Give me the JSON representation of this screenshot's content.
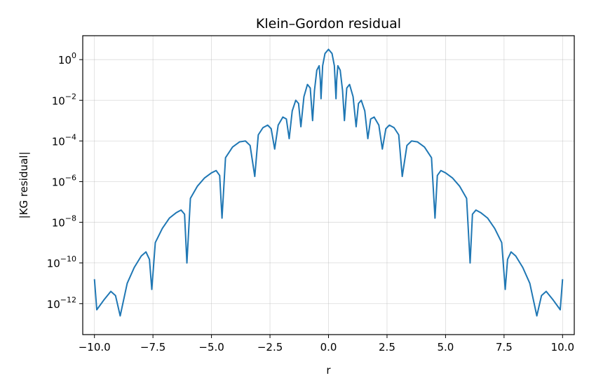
{
  "chart_data": {
    "type": "line",
    "title": "Klein–Gordon residual",
    "xlabel": "r",
    "ylabel": "|KG residual|",
    "xlim": [
      -10.5,
      10.5
    ],
    "ylim": [
      3e-14,
      15
    ],
    "yscale": "log",
    "grid": true,
    "x_ticks": [
      -10.0,
      -7.5,
      -5.0,
      -2.5,
      0.0,
      2.5,
      5.0,
      7.5,
      10.0
    ],
    "x_tick_labels": [
      "−10.0",
      "−7.5",
      "−5.0",
      "−2.5",
      "0.0",
      "2.5",
      "5.0",
      "7.5",
      "10.0"
    ],
    "y_ticks": [
      {
        "value": 1.0,
        "base": "10",
        "exp": "0"
      },
      {
        "value": 0.01,
        "base": "10",
        "exp": "−2"
      },
      {
        "value": 0.0001,
        "base": "10",
        "exp": "−4"
      },
      {
        "value": 1e-06,
        "base": "10",
        "exp": "−6"
      },
      {
        "value": 1e-08,
        "base": "10",
        "exp": "−8"
      },
      {
        "value": 1e-10,
        "base": "10",
        "exp": "−10"
      },
      {
        "value": 1e-12,
        "base": "10",
        "exp": "−12"
      }
    ],
    "series": [
      {
        "color": "#1f77b4",
        "points": [
          [
            -10.0,
            1.6e-11
          ],
          [
            -9.9,
            5e-13
          ],
          [
            -9.6,
            1.5e-12
          ],
          [
            -9.3,
            4e-12
          ],
          [
            -9.1,
            2.5e-12
          ],
          [
            -8.9,
            2.5e-13
          ],
          [
            -8.6,
            1e-11
          ],
          [
            -8.3,
            6e-11
          ],
          [
            -8.0,
            2.2e-10
          ],
          [
            -7.8,
            3.5e-10
          ],
          [
            -7.65,
            1.5e-10
          ],
          [
            -7.55,
            5e-12
          ],
          [
            -7.4,
            1e-09
          ],
          [
            -7.1,
            5e-09
          ],
          [
            -6.8,
            1.6e-08
          ],
          [
            -6.5,
            3e-08
          ],
          [
            -6.3,
            4e-08
          ],
          [
            -6.15,
            2.5e-08
          ],
          [
            -6.05,
            1e-10
          ],
          [
            -5.9,
            1.5e-07
          ],
          [
            -5.6,
            6e-07
          ],
          [
            -5.3,
            1.5e-06
          ],
          [
            -5.0,
            2.7e-06
          ],
          [
            -4.8,
            3.5e-06
          ],
          [
            -4.65,
            2e-06
          ],
          [
            -4.55,
            1.6e-08
          ],
          [
            -4.4,
            1.5e-05
          ],
          [
            -4.1,
            5e-05
          ],
          [
            -3.8,
            9e-05
          ],
          [
            -3.55,
            0.0001
          ],
          [
            -3.35,
            6e-05
          ],
          [
            -3.15,
            1.8e-06
          ],
          [
            -3.0,
            0.0002
          ],
          [
            -2.8,
            0.00045
          ],
          [
            -2.6,
            0.0006
          ],
          [
            -2.45,
            0.0004
          ],
          [
            -2.3,
            4e-05
          ],
          [
            -2.15,
            0.0006
          ],
          [
            -1.95,
            0.0015
          ],
          [
            -1.8,
            0.0012
          ],
          [
            -1.68,
            0.00013
          ],
          [
            -1.55,
            0.003
          ],
          [
            -1.4,
            0.01
          ],
          [
            -1.28,
            0.007
          ],
          [
            -1.18,
            0.0005
          ],
          [
            -1.05,
            0.015
          ],
          [
            -0.9,
            0.06
          ],
          [
            -0.78,
            0.04
          ],
          [
            -0.68,
            0.001
          ],
          [
            -0.6,
            0.03
          ],
          [
            -0.5,
            0.3
          ],
          [
            -0.4,
            0.5
          ],
          [
            -0.35,
            0.1
          ],
          [
            -0.32,
            0.012
          ],
          [
            -0.25,
            0.5
          ],
          [
            -0.15,
            2.0
          ],
          [
            0.0,
            3.2
          ],
          [
            0.15,
            2.0
          ],
          [
            0.25,
            0.5
          ],
          [
            0.32,
            0.012
          ],
          [
            0.35,
            0.1
          ],
          [
            0.4,
            0.5
          ],
          [
            0.5,
            0.3
          ],
          [
            0.6,
            0.03
          ],
          [
            0.68,
            0.001
          ],
          [
            0.78,
            0.04
          ],
          [
            0.9,
            0.06
          ],
          [
            1.05,
            0.015
          ],
          [
            1.18,
            0.0005
          ],
          [
            1.28,
            0.007
          ],
          [
            1.4,
            0.01
          ],
          [
            1.55,
            0.003
          ],
          [
            1.68,
            0.00013
          ],
          [
            1.8,
            0.0012
          ],
          [
            1.95,
            0.0015
          ],
          [
            2.15,
            0.0006
          ],
          [
            2.3,
            4e-05
          ],
          [
            2.45,
            0.0004
          ],
          [
            2.6,
            0.0006
          ],
          [
            2.8,
            0.00045
          ],
          [
            3.0,
            0.0002
          ],
          [
            3.15,
            1.8e-06
          ],
          [
            3.35,
            6e-05
          ],
          [
            3.55,
            0.0001
          ],
          [
            3.8,
            9e-05
          ],
          [
            4.1,
            5e-05
          ],
          [
            4.4,
            1.5e-05
          ],
          [
            4.55,
            1.6e-08
          ],
          [
            4.65,
            2e-06
          ],
          [
            4.8,
            3.5e-06
          ],
          [
            5.0,
            2.7e-06
          ],
          [
            5.3,
            1.5e-06
          ],
          [
            5.6,
            6e-07
          ],
          [
            5.9,
            1.5e-07
          ],
          [
            6.05,
            1e-10
          ],
          [
            6.15,
            2.5e-08
          ],
          [
            6.3,
            4e-08
          ],
          [
            6.5,
            3e-08
          ],
          [
            6.8,
            1.6e-08
          ],
          [
            7.1,
            5e-09
          ],
          [
            7.4,
            1e-09
          ],
          [
            7.55,
            5e-12
          ],
          [
            7.65,
            1.5e-10
          ],
          [
            7.8,
            3.5e-10
          ],
          [
            8.0,
            2.2e-10
          ],
          [
            8.3,
            6e-11
          ],
          [
            8.6,
            1e-11
          ],
          [
            8.9,
            2.5e-13
          ],
          [
            9.1,
            2.5e-12
          ],
          [
            9.3,
            4e-12
          ],
          [
            9.6,
            1.5e-12
          ],
          [
            9.9,
            5e-13
          ],
          [
            10.0,
            1.6e-11
          ]
        ]
      }
    ]
  }
}
